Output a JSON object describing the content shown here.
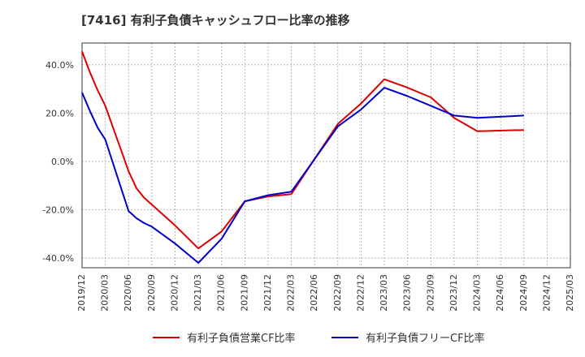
{
  "chart_data": {
    "type": "line",
    "title": "[7416]  有利子負債キャッシュフロー比率の推移",
    "xlabel": "",
    "ylabel": "",
    "x_ticks": [
      "2019/12",
      "2020/03",
      "2020/06",
      "2020/09",
      "2020/12",
      "2021/03",
      "2021/06",
      "2021/09",
      "2021/12",
      "2022/03",
      "2022/06",
      "2022/09",
      "2022/12",
      "2023/03",
      "2023/06",
      "2023/09",
      "2023/12",
      "2024/03",
      "2024/06",
      "2024/09",
      "2024/12",
      "2025/03"
    ],
    "y_ticks": [
      "40.0%",
      "20.0%",
      "0.0%",
      "-20.0%",
      "-40.0%"
    ],
    "y_tick_values": [
      40,
      20,
      0,
      -20,
      -40
    ],
    "ylim": [
      -44,
      49
    ],
    "grid": true,
    "legend_position": "bottom",
    "series": [
      {
        "name": "有利子負債営業CF比率",
        "color": "#dd0000",
        "points": [
          [
            "2019/12",
            45.5
          ],
          [
            "2020/01",
            37
          ],
          [
            "2020/02",
            29.5
          ],
          [
            "2020/03",
            23
          ],
          [
            "2020/05",
            5
          ],
          [
            "2020/06",
            -4
          ],
          [
            "2020/07",
            -11
          ],
          [
            "2020/08",
            -15
          ],
          [
            "2020/12",
            -26.5
          ],
          [
            "2021/03",
            -36
          ],
          [
            "2021/06",
            -29
          ],
          [
            "2021/09",
            -16.5
          ],
          [
            "2021/12",
            -14.5
          ],
          [
            "2022/03",
            -13.5
          ],
          [
            "2022/09",
            15.5
          ],
          [
            "2022/12",
            24
          ],
          [
            "2023/03",
            34
          ],
          [
            "2023/06",
            30.5
          ],
          [
            "2023/09",
            26.5
          ],
          [
            "2023/12",
            18
          ],
          [
            "2024/03",
            12.5
          ],
          [
            "2024/09",
            13
          ]
        ]
      },
      {
        "name": "有利子負債フリーCF比率",
        "color": "#0000cc",
        "points": [
          [
            "2019/12",
            28.5
          ],
          [
            "2020/01",
            21
          ],
          [
            "2020/02",
            14
          ],
          [
            "2020/03",
            9
          ],
          [
            "2020/06",
            -20.5
          ],
          [
            "2020/07",
            -23.5
          ],
          [
            "2020/08",
            -25.5
          ],
          [
            "2020/09",
            -27
          ],
          [
            "2020/12",
            -34
          ],
          [
            "2021/03",
            -42
          ],
          [
            "2021/06",
            -32
          ],
          [
            "2021/09",
            -16.5
          ],
          [
            "2021/12",
            -14
          ],
          [
            "2022/03",
            -12.5
          ],
          [
            "2022/09",
            14.5
          ],
          [
            "2022/12",
            21.5
          ],
          [
            "2023/03",
            30.5
          ],
          [
            "2023/06",
            27
          ],
          [
            "2023/09",
            23
          ],
          [
            "2023/12",
            19
          ],
          [
            "2024/03",
            18
          ],
          [
            "2024/09",
            19
          ]
        ]
      }
    ]
  }
}
